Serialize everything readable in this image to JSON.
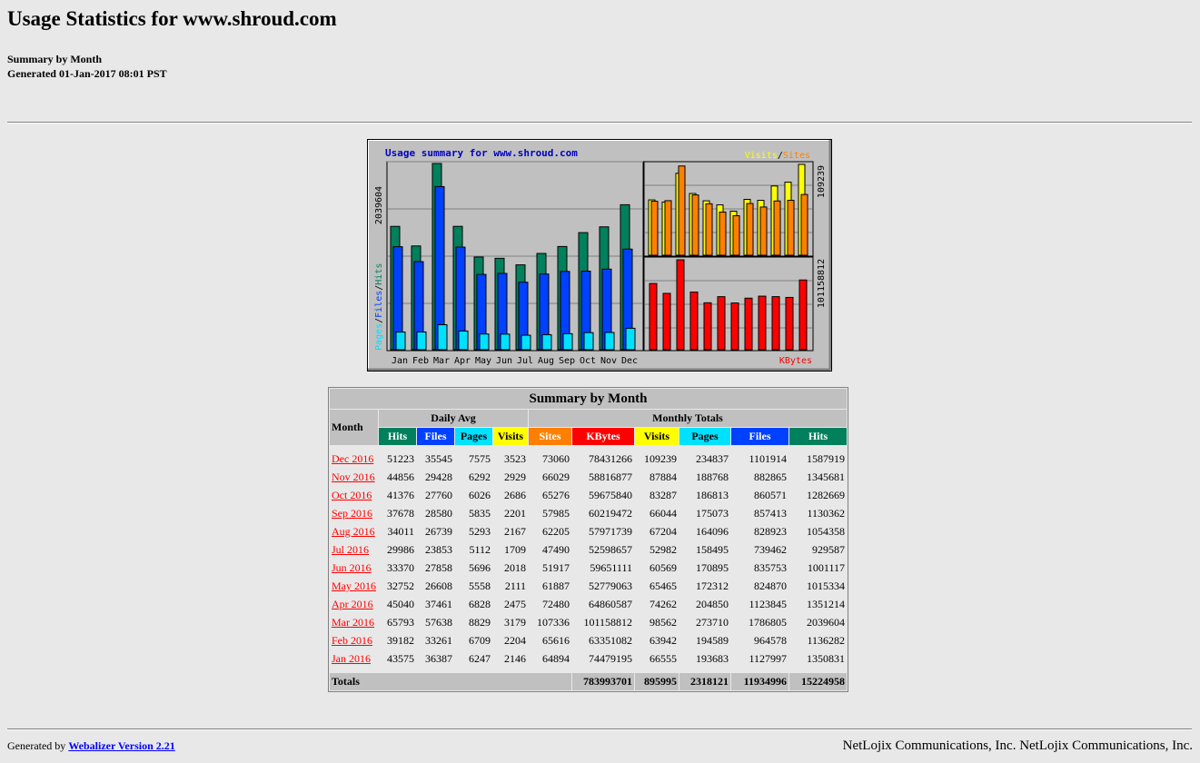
{
  "title": "Usage Statistics for www.shroud.com",
  "subtitle_line1": "Summary by Month",
  "subtitle_line2": "Generated 01-Jan-2017 08:01 PST",
  "chart_data": {
    "type": "bar",
    "title": "Usage summary for www.shroud.com",
    "categories": [
      "Jan",
      "Feb",
      "Mar",
      "Apr",
      "May",
      "Jun",
      "Jul",
      "Aug",
      "Sep",
      "Oct",
      "Nov",
      "Dec"
    ],
    "left_axis_label_pages": "Pages",
    "left_axis_label_files": "Files",
    "left_axis_label_hits": "Hits",
    "left_axis_max_label": "2039604",
    "right_top_max_label": "109239",
    "right_bottom_max_label": "101158812",
    "legend_visits": "Visits",
    "legend_sites": "Sites",
    "legend_slash": "/",
    "legend_kbytes": "KBytes",
    "colors": {
      "hits": "#00805c",
      "files": "#0040ff",
      "pages": "#00e0ff",
      "visits": "#ffff00",
      "sites": "#ff8000",
      "kbytes": "#ff0000"
    },
    "series": [
      {
        "name": "Hits",
        "values": [
          1350831,
          1136282,
          2039604,
          1351214,
          1015334,
          1001117,
          929587,
          1054358,
          1130362,
          1282669,
          1345681,
          1587919
        ]
      },
      {
        "name": "Files",
        "values": [
          1127997,
          964578,
          1786805,
          1123845,
          824870,
          835753,
          739462,
          828923,
          857413,
          860571,
          882865,
          1101914
        ]
      },
      {
        "name": "Pages",
        "values": [
          193683,
          194589,
          273710,
          204850,
          172312,
          170895,
          158495,
          164096,
          175073,
          186813,
          188768,
          234837
        ]
      },
      {
        "name": "Visits",
        "values": [
          66555,
          63942,
          98562,
          74262,
          65465,
          60569,
          52982,
          67204,
          66044,
          83287,
          87884,
          109239
        ]
      },
      {
        "name": "Sites",
        "values": [
          64894,
          65616,
          107336,
          72480,
          61887,
          51917,
          47490,
          62205,
          57985,
          65276,
          66029,
          73060
        ]
      },
      {
        "name": "KBytes",
        "values": [
          74479195,
          63351082,
          101158812,
          64860587,
          52779063,
          59651111,
          52598657,
          57971739,
          60219472,
          59675840,
          58816877,
          78431266
        ]
      }
    ]
  },
  "table": {
    "caption": "Summary by Month",
    "month_header": "Month",
    "daily_avg_header": "Daily Avg",
    "monthly_totals_header": "Monthly Totals",
    "col_hits": "Hits",
    "col_files": "Files",
    "col_pages": "Pages",
    "col_visits": "Visits",
    "col_sites": "Sites",
    "col_kbytes": "KBytes",
    "rows": [
      {
        "month": "Dec 2016",
        "d_hits": "51223",
        "d_files": "35545",
        "d_pages": "7575",
        "d_visits": "3523",
        "sites": "73060",
        "kbytes": "78431266",
        "visits": "109239",
        "pages": "234837",
        "files": "1101914",
        "hits": "1587919"
      },
      {
        "month": "Nov 2016",
        "d_hits": "44856",
        "d_files": "29428",
        "d_pages": "6292",
        "d_visits": "2929",
        "sites": "66029",
        "kbytes": "58816877",
        "visits": "87884",
        "pages": "188768",
        "files": "882865",
        "hits": "1345681"
      },
      {
        "month": "Oct 2016",
        "d_hits": "41376",
        "d_files": "27760",
        "d_pages": "6026",
        "d_visits": "2686",
        "sites": "65276",
        "kbytes": "59675840",
        "visits": "83287",
        "pages": "186813",
        "files": "860571",
        "hits": "1282669"
      },
      {
        "month": "Sep 2016",
        "d_hits": "37678",
        "d_files": "28580",
        "d_pages": "5835",
        "d_visits": "2201",
        "sites": "57985",
        "kbytes": "60219472",
        "visits": "66044",
        "pages": "175073",
        "files": "857413",
        "hits": "1130362"
      },
      {
        "month": "Aug 2016",
        "d_hits": "34011",
        "d_files": "26739",
        "d_pages": "5293",
        "d_visits": "2167",
        "sites": "62205",
        "kbytes": "57971739",
        "visits": "67204",
        "pages": "164096",
        "files": "828923",
        "hits": "1054358"
      },
      {
        "month": "Jul 2016",
        "d_hits": "29986",
        "d_files": "23853",
        "d_pages": "5112",
        "d_visits": "1709",
        "sites": "47490",
        "kbytes": "52598657",
        "visits": "52982",
        "pages": "158495",
        "files": "739462",
        "hits": "929587"
      },
      {
        "month": "Jun 2016",
        "d_hits": "33370",
        "d_files": "27858",
        "d_pages": "5696",
        "d_visits": "2018",
        "sites": "51917",
        "kbytes": "59651111",
        "visits": "60569",
        "pages": "170895",
        "files": "835753",
        "hits": "1001117"
      },
      {
        "month": "May 2016",
        "d_hits": "32752",
        "d_files": "26608",
        "d_pages": "5558",
        "d_visits": "2111",
        "sites": "61887",
        "kbytes": "52779063",
        "visits": "65465",
        "pages": "172312",
        "files": "824870",
        "hits": "1015334"
      },
      {
        "month": "Apr 2016",
        "d_hits": "45040",
        "d_files": "37461",
        "d_pages": "6828",
        "d_visits": "2475",
        "sites": "72480",
        "kbytes": "64860587",
        "visits": "74262",
        "pages": "204850",
        "files": "1123845",
        "hits": "1351214"
      },
      {
        "month": "Mar 2016",
        "d_hits": "65793",
        "d_files": "57638",
        "d_pages": "8829",
        "d_visits": "3179",
        "sites": "107336",
        "kbytes": "101158812",
        "visits": "98562",
        "pages": "273710",
        "files": "1786805",
        "hits": "2039604"
      },
      {
        "month": "Feb 2016",
        "d_hits": "39182",
        "d_files": "33261",
        "d_pages": "6709",
        "d_visits": "2204",
        "sites": "65616",
        "kbytes": "63351082",
        "visits": "63942",
        "pages": "194589",
        "files": "964578",
        "hits": "1136282"
      },
      {
        "month": "Jan 2016",
        "d_hits": "43575",
        "d_files": "36387",
        "d_pages": "6247",
        "d_visits": "2146",
        "sites": "64894",
        "kbytes": "74479195",
        "visits": "66555",
        "pages": "193683",
        "files": "1127997",
        "hits": "1350831"
      }
    ],
    "totals": {
      "label": "Totals",
      "kbytes": "783993701",
      "visits": "895995",
      "pages": "2318121",
      "files": "11934996",
      "hits": "15224958"
    }
  },
  "footer": {
    "generated_by": "Generated by",
    "webalizer_link": "Webalizer Version 2.21",
    "company": "NetLojix Communications, Inc. NetLojix Communications, Inc."
  }
}
